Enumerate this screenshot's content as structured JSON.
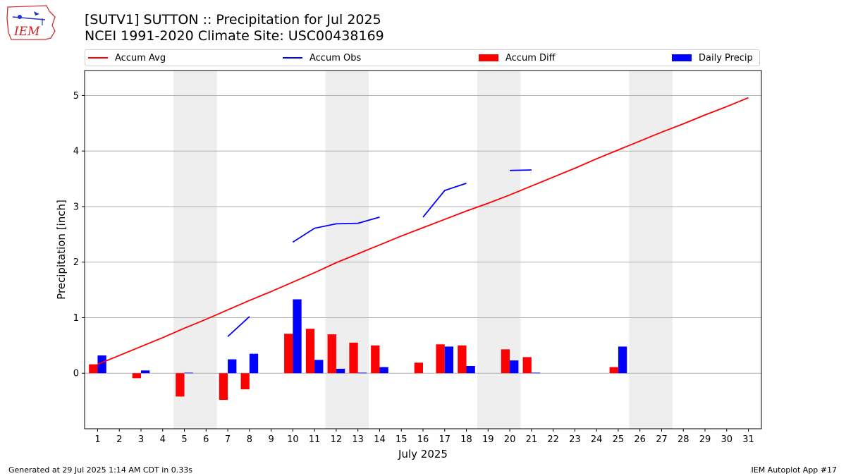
{
  "titles": {
    "line1": "[SUTV1] SUTTON :: Precipitation for Jul 2025",
    "line2": "NCEI 1991-2020 Climate Site: USC00438169"
  },
  "logo": {
    "text": "IEM",
    "icon": "iem-iowa-logo-icon"
  },
  "legend": {
    "accum_avg": "Accum Avg",
    "accum_obs": "Accum Obs",
    "accum_diff": "Accum Diff",
    "daily_precip": "Daily Precip"
  },
  "footer": {
    "left": "Generated at 29 Jul 2025 1:14 AM CDT in 0.33s",
    "right": "IEM Autoplot App #17"
  },
  "colors": {
    "accum_avg": "#ff0000",
    "accum_obs": "#0000ff",
    "accum_diff": "#ff0000",
    "daily_precip": "#0000ff",
    "weekend_shade": "#eeeeee",
    "grid": "#b0b0b0"
  },
  "chart_data": {
    "type": "bar",
    "xlabel": "July 2025",
    "ylabel": "Precipitation [inch]",
    "ylim": [
      -1.0,
      5.45
    ],
    "yticks": [
      0,
      1,
      2,
      3,
      4,
      5
    ],
    "days": [
      1,
      2,
      3,
      4,
      5,
      6,
      7,
      8,
      9,
      10,
      11,
      12,
      13,
      14,
      15,
      16,
      17,
      18,
      19,
      20,
      21,
      22,
      23,
      24,
      25,
      26,
      27,
      28,
      29,
      30,
      31
    ],
    "weekends": [
      [
        5,
        6
      ],
      [
        12,
        13
      ],
      [
        19,
        20
      ],
      [
        26,
        27
      ]
    ],
    "grid": "horizontal",
    "legend_position": "top",
    "series": [
      {
        "name": "Accum Avg",
        "kind": "line",
        "days": [
          1,
          2,
          3,
          4,
          5,
          6,
          7,
          8,
          9,
          10,
          11,
          12,
          13,
          14,
          15,
          16,
          17,
          18,
          19,
          20,
          21,
          22,
          23,
          24,
          25,
          26,
          27,
          28,
          29,
          30,
          31
        ],
        "values": [
          0.16,
          0.32,
          0.48,
          0.64,
          0.81,
          0.97,
          1.14,
          1.31,
          1.47,
          1.64,
          1.81,
          1.99,
          2.15,
          2.31,
          2.47,
          2.62,
          2.77,
          2.92,
          3.06,
          3.21,
          3.37,
          3.53,
          3.69,
          3.86,
          4.02,
          4.18,
          4.34,
          4.49,
          4.65,
          4.8,
          4.96
        ]
      },
      {
        "name": "Accum Obs",
        "kind": "line",
        "segments": [
          {
            "days": [
              7,
              8
            ],
            "values": [
              0.66,
              1.02
            ]
          },
          {
            "days": [
              10,
              11,
              12,
              13,
              14
            ],
            "values": [
              2.36,
              2.61,
              2.69,
              2.7,
              2.81
            ]
          },
          {
            "days": [
              16,
              17,
              18
            ],
            "values": [
              2.81,
              3.29,
              3.42
            ]
          },
          {
            "days": [
              20,
              21
            ],
            "values": [
              3.65,
              3.66
            ]
          }
        ]
      },
      {
        "name": "Accum Diff",
        "kind": "bar",
        "days": [
          1,
          3,
          5,
          7,
          8,
          10,
          11,
          12,
          13,
          14,
          16,
          17,
          18,
          20,
          21,
          25
        ],
        "values": [
          0.16,
          -0.09,
          -0.42,
          -0.48,
          -0.29,
          0.71,
          0.8,
          0.7,
          0.55,
          0.5,
          0.19,
          0.52,
          0.5,
          0.43,
          0.29,
          0.11
        ]
      },
      {
        "name": "Daily Precip",
        "kind": "bar",
        "days": [
          1,
          3,
          5,
          7,
          8,
          10,
          11,
          12,
          13,
          14,
          17,
          18,
          20,
          21,
          25
        ],
        "values": [
          0.32,
          0.05,
          0.01,
          0.25,
          0.35,
          1.33,
          0.24,
          0.08,
          0.01,
          0.11,
          0.48,
          0.13,
          0.23,
          0.01,
          0.48
        ]
      }
    ]
  }
}
